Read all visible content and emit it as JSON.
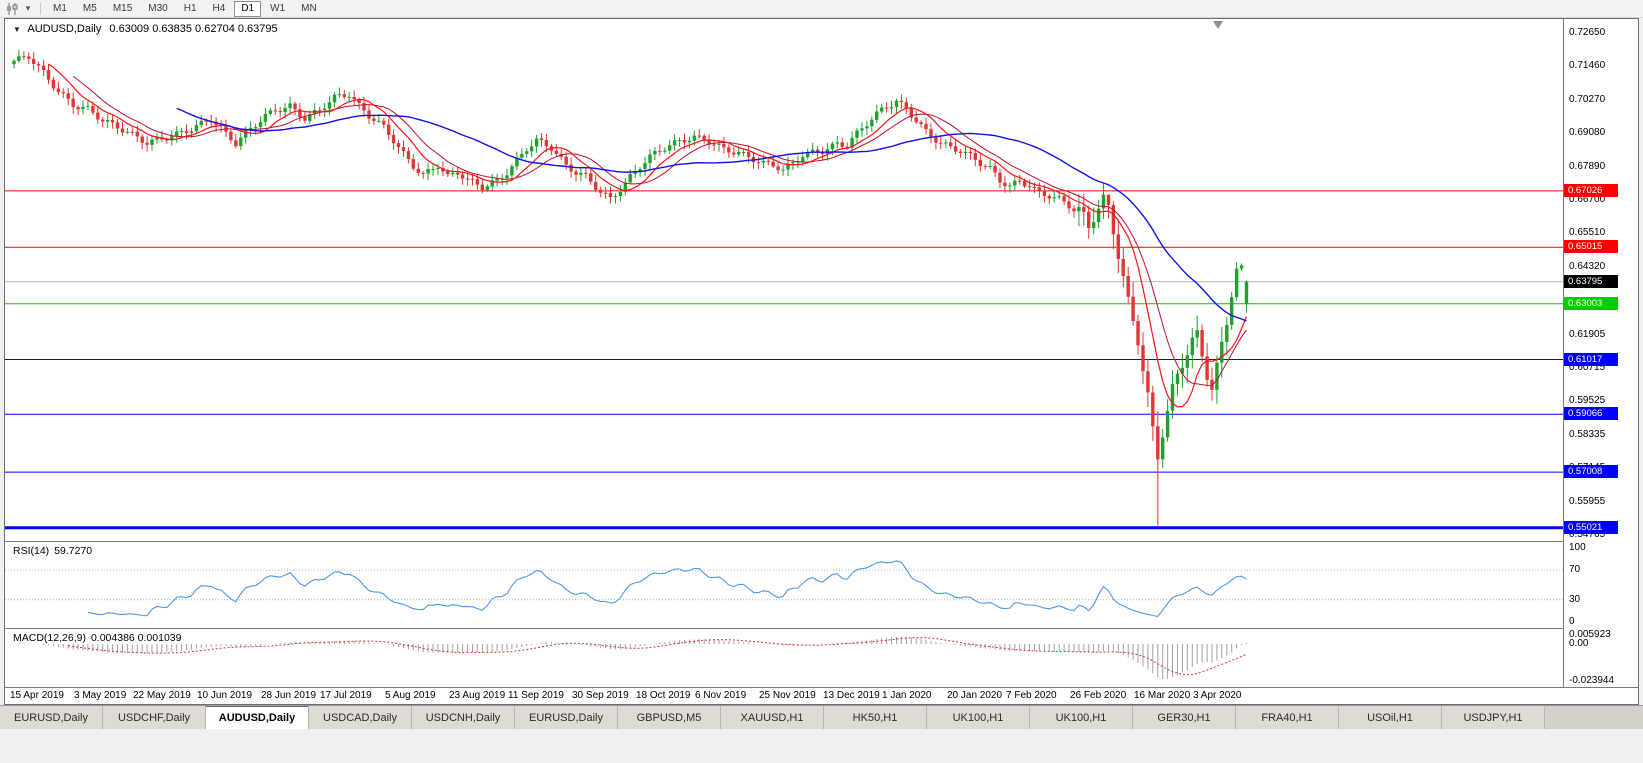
{
  "toolbar": {
    "timeframes": [
      "M1",
      "M5",
      "M15",
      "M30",
      "H1",
      "H4",
      "D1",
      "W1",
      "MN"
    ],
    "active_timeframe": "D1"
  },
  "chart": {
    "symbol": "AUDUSD,Daily",
    "ohlc_text": "0.63009 0.63835 0.62704 0.63795",
    "rsi_label": "RSI(14)",
    "rsi_value": "59.7270",
    "macd_label": "MACD(12,26,9)",
    "macd_values": "0.004386 0.001039"
  },
  "chart_data": {
    "type": "candlestick",
    "symbol": "AUDUSD",
    "timeframe": "Daily",
    "last_bar": {
      "open": 0.63009,
      "high": 0.63835,
      "low": 0.62704,
      "close": 0.63795
    },
    "price_top": 0.7265,
    "price_axis_ticks": [
      "0.72650",
      "0.71460",
      "0.70270",
      "0.69080",
      "0.67890",
      "0.66700",
      "0.65510",
      "0.64320",
      "0.61905",
      "0.60715",
      "0.59525",
      "0.58335",
      "0.57145",
      "0.55955",
      "0.54765"
    ],
    "current_price": {
      "value": 0.63795,
      "label": "0.63795",
      "color": "#000000"
    },
    "hlines": [
      {
        "price": 0.67026,
        "label": "0.67026",
        "color": "#ff0000",
        "width": 1
      },
      {
        "price": 0.65015,
        "label": "0.65015",
        "color": "#ff0000",
        "width": 1
      },
      {
        "price": 0.63003,
        "label": "0.63003",
        "color": "#00cc00",
        "width": 1
      },
      {
        "price": 0.61017,
        "label": "0.61017",
        "color": "#0000ff",
        "width": 1
      },
      {
        "price": 0.59066,
        "label": "0.59066",
        "color": "#0000ff",
        "width": 1
      },
      {
        "price": 0.57008,
        "label": "0.57008",
        "color": "#0000ff",
        "width": 1
      },
      {
        "price": 0.55021,
        "label": "0.55021",
        "color": "#0000ff",
        "width": 3
      }
    ],
    "x_labels": [
      {
        "bar": 2,
        "text": "15 Apr 2019"
      },
      {
        "bar": 15,
        "text": "3 May 2019"
      },
      {
        "bar": 27,
        "text": "22 May 2019"
      },
      {
        "bar": 40,
        "text": "10 Jun 2019"
      },
      {
        "bar": 53,
        "text": "28 Jun 2019"
      },
      {
        "bar": 65,
        "text": "17 Jul 2019"
      },
      {
        "bar": 78,
        "text": "5 Aug 2019"
      },
      {
        "bar": 91,
        "text": "23 Aug 2019"
      },
      {
        "bar": 103,
        "text": "11 Sep 2019"
      },
      {
        "bar": 116,
        "text": "30 Sep 2019"
      },
      {
        "bar": 129,
        "text": "18 Oct 2019"
      },
      {
        "bar": 141,
        "text": "6 Nov 2019"
      },
      {
        "bar": 154,
        "text": "25 Nov 2019"
      },
      {
        "bar": 167,
        "text": "13 Dec 2019"
      },
      {
        "bar": 179,
        "text": "1 Jan 2020"
      },
      {
        "bar": 192,
        "text": "20 Jan 2020"
      },
      {
        "bar": 204,
        "text": "7 Feb 2020"
      },
      {
        "bar": 217,
        "text": "26 Feb 2020"
      },
      {
        "bar": 230,
        "text": "16 Mar 2020"
      },
      {
        "bar": 242,
        "text": "3 Apr 2020"
      }
    ],
    "bars_total": 251,
    "close_anchors": [
      [
        0,
        0.716
      ],
      [
        3,
        0.7175
      ],
      [
        6,
        0.712
      ],
      [
        9,
        0.706
      ],
      [
        12,
        0.7015
      ],
      [
        15,
        0.7
      ],
      [
        18,
        0.6955
      ],
      [
        21,
        0.6925
      ],
      [
        24,
        0.6895
      ],
      [
        27,
        0.687
      ],
      [
        30,
        0.689
      ],
      [
        33,
        0.691
      ],
      [
        36,
        0.693
      ],
      [
        40,
        0.696
      ],
      [
        43,
        0.69
      ],
      [
        45,
        0.6865
      ],
      [
        48,
        0.692
      ],
      [
        51,
        0.697
      ],
      [
        53,
        0.6995
      ],
      [
        56,
        0.701
      ],
      [
        59,
        0.6965
      ],
      [
        62,
        0.699
      ],
      [
        65,
        0.703
      ],
      [
        68,
        0.704
      ],
      [
        70,
        0.7
      ],
      [
        72,
        0.697
      ],
      [
        75,
        0.6935
      ],
      [
        77,
        0.689
      ],
      [
        79,
        0.684
      ],
      [
        81,
        0.6795
      ],
      [
        83,
        0.6758
      ],
      [
        86,
        0.679
      ],
      [
        88,
        0.6745
      ],
      [
        90,
        0.6762
      ],
      [
        92,
        0.6738
      ],
      [
        95,
        0.6718
      ],
      [
        98,
        0.6745
      ],
      [
        100,
        0.6775
      ],
      [
        102,
        0.6815
      ],
      [
        104,
        0.6855
      ],
      [
        106,
        0.688
      ],
      [
        109,
        0.685
      ],
      [
        112,
        0.6785
      ],
      [
        114,
        0.6765
      ],
      [
        116,
        0.6755
      ],
      [
        119,
        0.6705
      ],
      [
        121,
        0.668
      ],
      [
        123,
        0.6715
      ],
      [
        125,
        0.6755
      ],
      [
        127,
        0.679
      ],
      [
        129,
        0.682
      ],
      [
        132,
        0.685
      ],
      [
        135,
        0.6875
      ],
      [
        138,
        0.6895
      ],
      [
        141,
        0.6885
      ],
      [
        144,
        0.6858
      ],
      [
        147,
        0.684
      ],
      [
        150,
        0.6812
      ],
      [
        152,
        0.6795
      ],
      [
        154,
        0.6788
      ],
      [
        156,
        0.6772
      ],
      [
        158,
        0.68
      ],
      [
        160,
        0.6832
      ],
      [
        162,
        0.6845
      ],
      [
        164,
        0.6852
      ],
      [
        167,
        0.6875
      ],
      [
        169,
        0.6868
      ],
      [
        171,
        0.6905
      ],
      [
        173,
        0.6938
      ],
      [
        176,
        0.6985
      ],
      [
        179,
        0.7018
      ],
      [
        181,
        0.6995
      ],
      [
        183,
        0.6958
      ],
      [
        185,
        0.692
      ],
      [
        188,
        0.6878
      ],
      [
        190,
        0.686
      ],
      [
        192,
        0.6845
      ],
      [
        194,
        0.6822
      ],
      [
        196,
        0.6795
      ],
      [
        198,
        0.6775
      ],
      [
        200,
        0.6735
      ],
      [
        202,
        0.6718
      ],
      [
        204,
        0.674
      ],
      [
        206,
        0.6728
      ],
      [
        208,
        0.67
      ],
      [
        210,
        0.6692
      ],
      [
        212,
        0.6675
      ],
      [
        214,
        0.6648
      ],
      [
        216,
        0.662
      ],
      [
        217,
        0.6592
      ],
      [
        218,
        0.656
      ],
      [
        219,
        0.66
      ],
      [
        220,
        0.663
      ],
      [
        221,
        0.6655
      ],
      [
        222,
        0.663
      ],
      [
        223,
        0.656
      ],
      [
        224,
        0.648
      ],
      [
        225,
        0.6395
      ],
      [
        226,
        0.631
      ],
      [
        227,
        0.625
      ],
      [
        228,
        0.619
      ],
      [
        229,
        0.6085
      ],
      [
        230,
        0.598
      ],
      [
        231,
        0.586
      ],
      [
        232,
        0.577
      ],
      [
        233,
        0.5855
      ],
      [
        234,
        0.592
      ],
      [
        235,
        0.599
      ],
      [
        236,
        0.604
      ],
      [
        237,
        0.6085
      ],
      [
        238,
        0.612
      ],
      [
        239,
        0.615
      ],
      [
        240,
        0.617
      ],
      [
        241,
        0.6105
      ],
      [
        242,
        0.604
      ],
      [
        243,
        0.5985
      ],
      [
        244,
        0.606
      ],
      [
        245,
        0.615
      ],
      [
        246,
        0.6245
      ],
      [
        247,
        0.6335
      ],
      [
        248,
        0.6425
      ],
      [
        249,
        0.6432
      ],
      [
        250,
        0.63795
      ]
    ],
    "overrides": {
      "222": {
        "high": 0.6685
      },
      "232": {
        "low": 0.551
      },
      "248": {
        "high": 0.6448
      },
      "250": {
        "open": 0.63009,
        "high": 0.63835,
        "low": 0.62704,
        "close": 0.63795
      }
    },
    "synthesis": {
      "noise_amp1": 0.0011,
      "noise_amp2": 0.0007,
      "wick_base": 0.0006,
      "wick_var": 0.0018,
      "high_vol_range": [
        216,
        246
      ],
      "high_vol_factor": 2.2
    },
    "moving_averages": [
      {
        "period": 13,
        "color": "#bb1133",
        "width": 1
      },
      {
        "period": 8,
        "color": "#ff1111",
        "width": 1.2
      },
      {
        "period": 34,
        "color": "#1111ee",
        "width": 1.4
      }
    ],
    "colors": {
      "bull": "#1fa12c",
      "bear": "#e03636",
      "rsi_line": "#4f96e8",
      "macd_hist": "#a0a0a0",
      "macd_signal": "#e03030",
      "current_line": "#b8b8b8",
      "shift_marker": "#909090"
    },
    "rsi": {
      "period": 14,
      "levels": [
        "100",
        "70",
        "30",
        "0"
      ],
      "level_values": [
        100,
        70,
        30,
        0
      ],
      "value": 59.727
    },
    "macd": {
      "fast": 12,
      "slow": 26,
      "signal": 9,
      "axis_labels": [
        "0.005923",
        "0.00",
        "-0.023944"
      ],
      "axis_values": [
        0.005923,
        0,
        -0.023944
      ],
      "max": 0.005923,
      "min": -0.023944
    }
  },
  "tabs": {
    "active_index": 2,
    "items": [
      "EURUSD,Daily",
      "USDCHF,Daily",
      "AUDUSD,Daily",
      "USDCAD,Daily",
      "USDCNH,Daily",
      "EURUSD,Daily",
      "GBPUSD,M5",
      "XAUUSD,H1",
      "HK50,H1",
      "UK100,H1",
      "UK100,H1",
      "GER30,H1",
      "FRA40,H1",
      "USOil,H1",
      "USDJPY,H1"
    ]
  }
}
